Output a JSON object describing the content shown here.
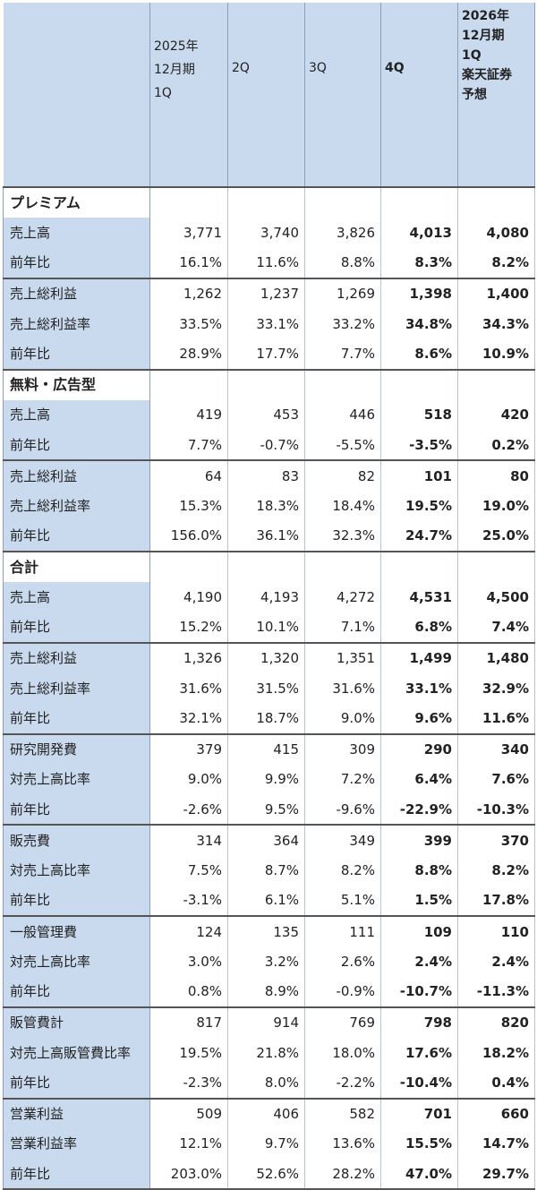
{
  "header": {
    "col1": "2025年\n12月期\n1Q",
    "col1_lines": [
      "2025年",
      "12月期",
      "1Q"
    ],
    "col2": "2Q",
    "col3": "3Q",
    "col4": "4Q",
    "col5_lines": [
      "2026年",
      "12月期",
      "1Q",
      "楽天証券",
      "予想"
    ]
  },
  "sections": [
    {
      "title": "プレミアム",
      "groups": [
        [
          {
            "label": "売上高",
            "v": [
              "3,771",
              "3,740",
              "3,826",
              "4,013",
              "4,080"
            ]
          },
          {
            "label": "前年比",
            "v": [
              "16.1%",
              "11.6%",
              "8.8%",
              "8.3%",
              "8.2%"
            ]
          }
        ],
        [
          {
            "label": "売上総利益",
            "v": [
              "1,262",
              "1,237",
              "1,269",
              "1,398",
              "1,400"
            ]
          },
          {
            "label": "売上総利益率",
            "v": [
              "33.5%",
              "33.1%",
              "33.2%",
              "34.8%",
              "34.3%"
            ]
          },
          {
            "label": "前年比",
            "v": [
              "28.9%",
              "17.7%",
              "7.7%",
              "8.6%",
              "10.9%"
            ]
          }
        ]
      ]
    },
    {
      "title": "無料・広告型",
      "groups": [
        [
          {
            "label": "売上高",
            "v": [
              "419",
              "453",
              "446",
              "518",
              "420"
            ]
          },
          {
            "label": "前年比",
            "v": [
              "7.7%",
              "-0.7%",
              "-5.5%",
              "-3.5%",
              "0.2%"
            ]
          }
        ],
        [
          {
            "label": "売上総利益",
            "v": [
              "64",
              "83",
              "82",
              "101",
              "80"
            ]
          },
          {
            "label": "売上総利益率",
            "v": [
              "15.3%",
              "18.3%",
              "18.4%",
              "19.5%",
              "19.0%"
            ]
          },
          {
            "label": "前年比",
            "v": [
              "156.0%",
              "36.1%",
              "32.3%",
              "24.7%",
              "25.0%"
            ]
          }
        ]
      ]
    },
    {
      "title": "合計",
      "groups": [
        [
          {
            "label": "売上高",
            "v": [
              "4,190",
              "4,193",
              "4,272",
              "4,531",
              "4,500"
            ]
          },
          {
            "label": "前年比",
            "v": [
              "15.2%",
              "10.1%",
              "7.1%",
              "6.8%",
              "7.4%"
            ]
          }
        ],
        [
          {
            "label": "売上総利益",
            "v": [
              "1,326",
              "1,320",
              "1,351",
              "1,499",
              "1,480"
            ]
          },
          {
            "label": "売上総利益率",
            "v": [
              "31.6%",
              "31.5%",
              "31.6%",
              "33.1%",
              "32.9%"
            ]
          },
          {
            "label": "前年比",
            "v": [
              "32.1%",
              "18.7%",
              "9.0%",
              "9.6%",
              "11.6%"
            ]
          }
        ],
        [
          {
            "label": "研究開発費",
            "v": [
              "379",
              "415",
              "309",
              "290",
              "340"
            ]
          },
          {
            "label": "対売上高比率",
            "v": [
              "9.0%",
              "9.9%",
              "7.2%",
              "6.4%",
              "7.6%"
            ]
          },
          {
            "label": "前年比",
            "v": [
              "-2.6%",
              "9.5%",
              "-9.6%",
              "-22.9%",
              "-10.3%"
            ]
          }
        ],
        [
          {
            "label": "販売費",
            "v": [
              "314",
              "364",
              "349",
              "399",
              "370"
            ]
          },
          {
            "label": "対売上高比率",
            "v": [
              "7.5%",
              "8.7%",
              "8.2%",
              "8.8%",
              "8.2%"
            ]
          },
          {
            "label": "前年比",
            "v": [
              "-3.1%",
              "6.1%",
              "5.1%",
              "1.5%",
              "17.8%"
            ]
          }
        ],
        [
          {
            "label": "一般管理費",
            "v": [
              "124",
              "135",
              "111",
              "109",
              "110"
            ]
          },
          {
            "label": "対売上高比率",
            "v": [
              "3.0%",
              "3.2%",
              "2.6%",
              "2.4%",
              "2.4%"
            ]
          },
          {
            "label": "前年比",
            "v": [
              "0.8%",
              "8.9%",
              "-0.9%",
              "-10.7%",
              "-11.3%"
            ]
          }
        ],
        [
          {
            "label": "販管費計",
            "v": [
              "817",
              "914",
              "769",
              "798",
              "820"
            ]
          },
          {
            "label": "対売上高販管費比率",
            "v": [
              "19.5%",
              "21.8%",
              "18.0%",
              "17.6%",
              "18.2%"
            ]
          },
          {
            "label": "前年比",
            "v": [
              "-2.3%",
              "8.0%",
              "-2.2%",
              "-10.4%",
              "0.4%"
            ]
          }
        ],
        [
          {
            "label": "営業利益",
            "v": [
              "509",
              "406",
              "582",
              "701",
              "660"
            ]
          },
          {
            "label": "営業利益率",
            "v": [
              "12.1%",
              "9.7%",
              "13.6%",
              "15.5%",
              "14.7%"
            ]
          },
          {
            "label": "前年比",
            "v": [
              "203.0%",
              "52.6%",
              "28.2%",
              "47.0%",
              "29.7%"
            ]
          }
        ]
      ]
    }
  ]
}
